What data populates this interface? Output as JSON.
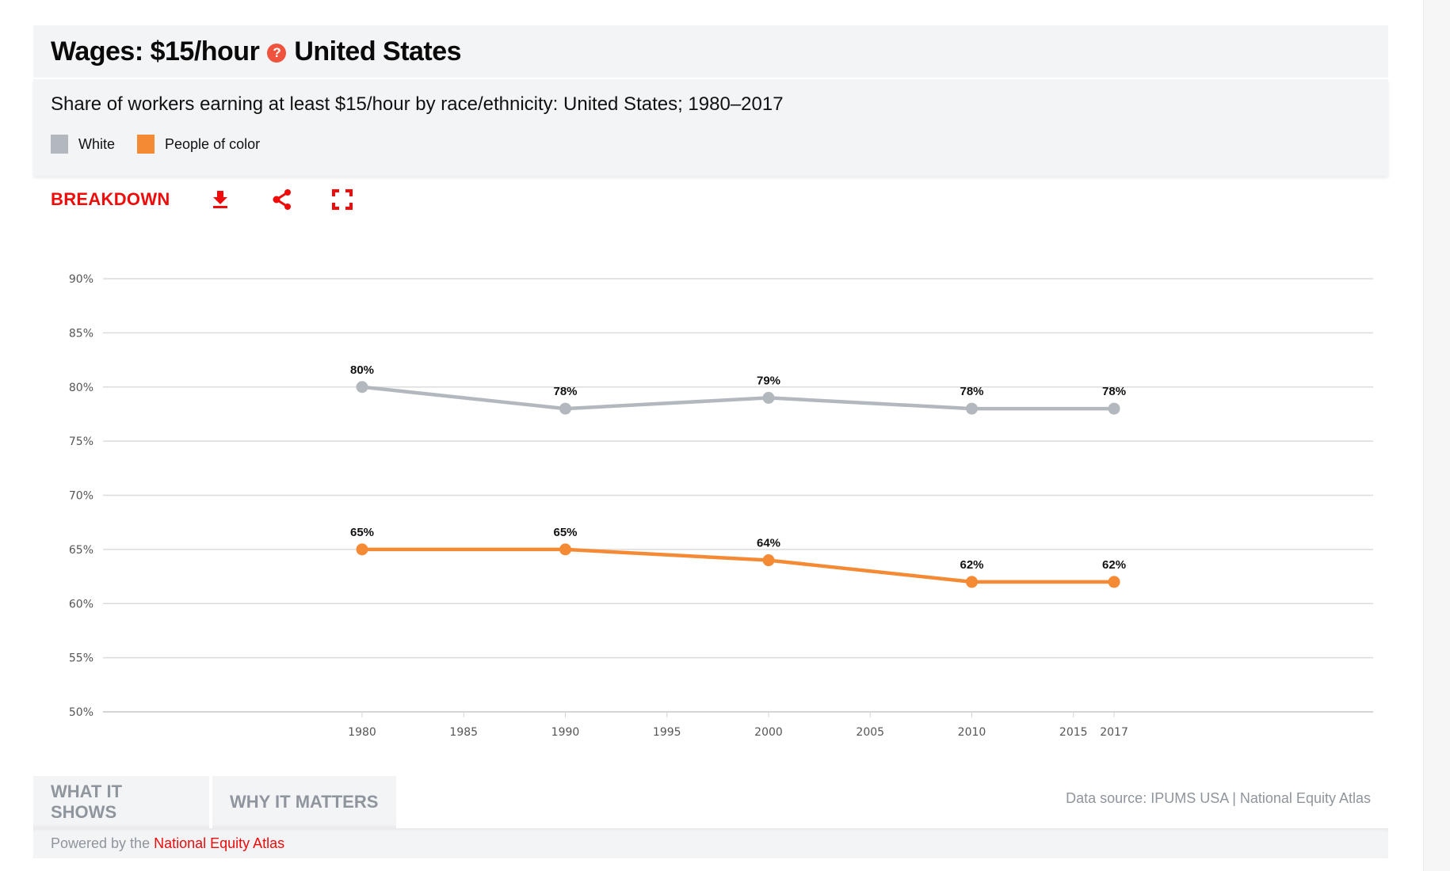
{
  "header": {
    "title_prefix": "Wages: $15/hour",
    "help_icon": "question-circle-icon",
    "title_suffix": "United States"
  },
  "subtitle": "Share of workers earning at least $15/hour by race/ethnicity: United States; 1980–2017",
  "legend": [
    {
      "label": "White",
      "color": "#b3b8bf"
    },
    {
      "label": "People of color",
      "color": "#f58a35"
    }
  ],
  "toolbar": {
    "breakdown_label": "BREAKDOWN",
    "download_icon": "download-icon",
    "share_icon": "share-icon",
    "fullscreen_icon": "fullscreen-icon",
    "accent_color": "#f00a0a"
  },
  "tabs": [
    {
      "label": "WHAT IT SHOWS"
    },
    {
      "label": "WHY IT MATTERS"
    }
  ],
  "data_source": "Data source: IPUMS USA | National Equity Atlas",
  "footer": {
    "powered_prefix": "Powered by the",
    "powered_link": "National Equity Atlas"
  },
  "chart_data": {
    "type": "line",
    "title": "Share of workers earning at least $15/hour by race/ethnicity: United States; 1980–2017",
    "xlabel": "",
    "ylabel": "",
    "x": [
      1980,
      1990,
      2000,
      2010,
      2017
    ],
    "x_ticks": [
      1980,
      1985,
      1990,
      1995,
      2000,
      2005,
      2010,
      2015,
      2017
    ],
    "x_range": [
      1967.5,
      2031
    ],
    "y_ticks": [
      50,
      55,
      60,
      65,
      70,
      75,
      80,
      85,
      90
    ],
    "y_tick_labels": [
      "50%",
      "55%",
      "60%",
      "65%",
      "70%",
      "75%",
      "80%",
      "85%",
      "90%"
    ],
    "ylim": [
      50,
      90
    ],
    "grid": true,
    "legend_position": "top-left",
    "series": [
      {
        "name": "White",
        "color": "#b3b8bf",
        "values": [
          80,
          78,
          79,
          78,
          78
        ],
        "labels": [
          "80%",
          "78%",
          "79%",
          "78%",
          "78%"
        ]
      },
      {
        "name": "People of color",
        "color": "#f58a35",
        "values": [
          65,
          65,
          64,
          62,
          62
        ],
        "labels": [
          "65%",
          "65%",
          "64%",
          "62%",
          "62%"
        ]
      }
    ]
  }
}
